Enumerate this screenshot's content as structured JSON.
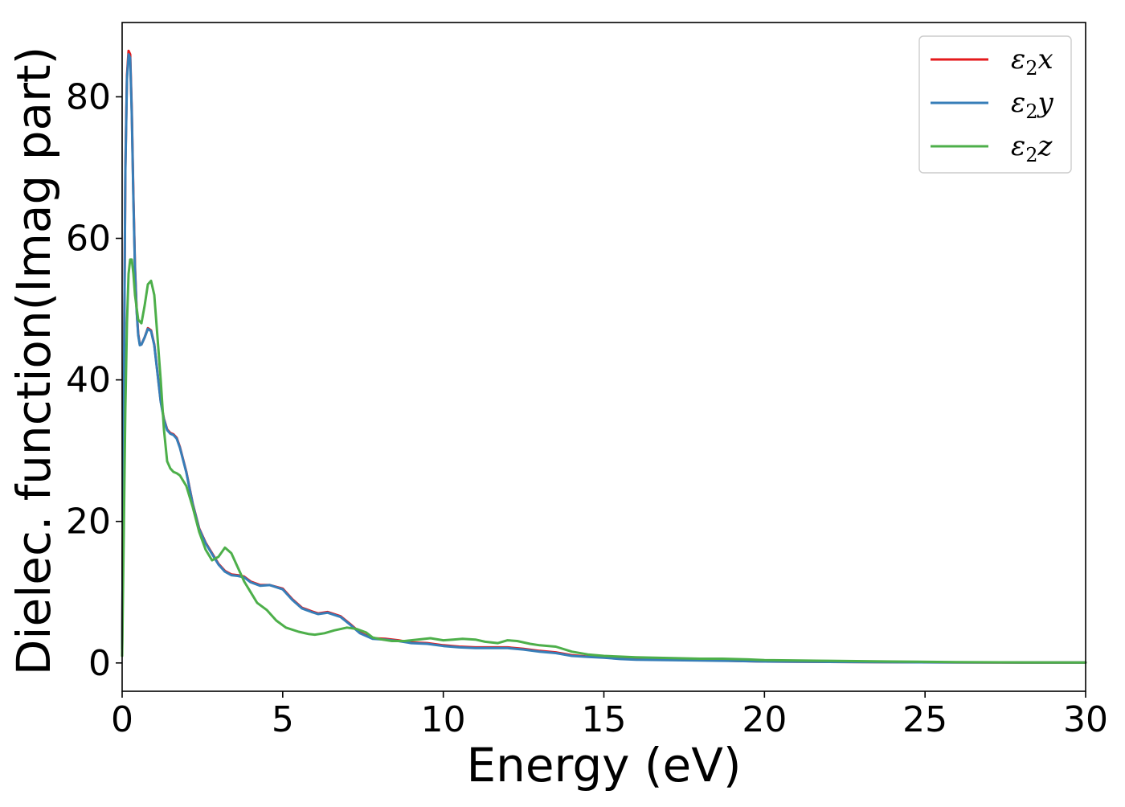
{
  "chart_data": {
    "type": "line",
    "title": "",
    "xlabel": "Energy (eV)",
    "ylabel": "Dielec. function(Imag part)",
    "xlim": [
      0,
      30
    ],
    "ylim": [
      -4,
      90.5
    ],
    "xticks": [
      0,
      5,
      10,
      15,
      20,
      25,
      30
    ],
    "yticks": [
      0,
      20,
      40,
      60,
      80
    ],
    "grid": false,
    "legend_position": "top-right",
    "series": [
      {
        "name": "ε2x",
        "legend_base": "ε",
        "legend_sub": "2",
        "legend_tail": "x",
        "color": "#e41a1c",
        "x": [
          0,
          0.05,
          0.1,
          0.15,
          0.2,
          0.25,
          0.3,
          0.35,
          0.4,
          0.45,
          0.5,
          0.55,
          0.6,
          0.7,
          0.8,
          0.9,
          1.0,
          1.1,
          1.2,
          1.3,
          1.4,
          1.5,
          1.6,
          1.7,
          1.8,
          2.0,
          2.2,
          2.4,
          2.6,
          2.8,
          3.0,
          3.2,
          3.4,
          3.6,
          3.8,
          4.0,
          4.3,
          4.6,
          5.0,
          5.3,
          5.6,
          5.9,
          6.1,
          6.4,
          6.8,
          7.1,
          7.4,
          7.8,
          8.2,
          8.6,
          9.0,
          9.5,
          10.0,
          10.5,
          11.0,
          11.5,
          12.0,
          12.5,
          13.0,
          13.5,
          14.0,
          14.5,
          15.0,
          15.5,
          16.0,
          17.0,
          18.0,
          19.0,
          20.0,
          22.0,
          24.0,
          26.0,
          28.0,
          30.0
        ],
        "y": [
          2,
          36,
          70,
          83,
          86.5,
          86,
          78,
          66,
          56,
          50,
          46.5,
          45,
          45,
          46,
          47.3,
          47,
          45,
          41,
          37,
          34.5,
          33,
          32.5,
          32.3,
          31.8,
          30.5,
          27,
          22.5,
          19,
          17,
          15.5,
          14,
          13,
          12.5,
          12.4,
          12.2,
          11.5,
          11,
          11,
          10.5,
          9,
          7.8,
          7.3,
          7,
          7.2,
          6.6,
          5.5,
          4.3,
          3.5,
          3.4,
          3.2,
          2.9,
          2.8,
          2.5,
          2.3,
          2.2,
          2.2,
          2.2,
          2.0,
          1.7,
          1.5,
          1.1,
          0.9,
          0.8,
          0.6,
          0.5,
          0.45,
          0.4,
          0.3,
          0.2,
          0.15,
          0.1,
          0.08,
          0.06,
          0.05
        ]
      },
      {
        "name": "ε2y",
        "legend_base": "ε",
        "legend_sub": "2",
        "legend_tail": "y",
        "color": "#377eb8",
        "x": [
          0,
          0.05,
          0.1,
          0.15,
          0.2,
          0.25,
          0.3,
          0.35,
          0.4,
          0.45,
          0.5,
          0.55,
          0.6,
          0.7,
          0.8,
          0.9,
          1.0,
          1.1,
          1.2,
          1.3,
          1.4,
          1.5,
          1.6,
          1.7,
          1.8,
          2.0,
          2.2,
          2.4,
          2.6,
          2.8,
          3.0,
          3.2,
          3.4,
          3.6,
          3.8,
          4.0,
          4.3,
          4.6,
          5.0,
          5.3,
          5.6,
          5.9,
          6.1,
          6.4,
          6.8,
          7.1,
          7.4,
          7.8,
          8.2,
          8.6,
          9.0,
          9.5,
          10.0,
          10.5,
          11.0,
          11.5,
          12.0,
          12.5,
          13.0,
          13.5,
          14.0,
          14.5,
          15.0,
          15.5,
          16.0,
          17.0,
          18.0,
          19.0,
          20.0,
          22.0,
          24.0,
          26.0,
          28.0,
          30.0
        ],
        "y": [
          2,
          35.5,
          69.5,
          82.5,
          86,
          85.5,
          77.5,
          65.5,
          55.5,
          49.8,
          46.3,
          44.9,
          45,
          46,
          47.2,
          46.9,
          44.9,
          40.9,
          36.9,
          34.4,
          32.9,
          32.4,
          32.2,
          31.7,
          30.4,
          26.9,
          22.4,
          18.9,
          16.9,
          15.4,
          13.9,
          12.9,
          12.4,
          12.3,
          12.1,
          11.4,
          10.9,
          11,
          10.4,
          8.9,
          7.7,
          7.2,
          6.9,
          7.1,
          6.5,
          5.4,
          4.2,
          3.4,
          3.3,
          3.1,
          2.8,
          2.7,
          2.4,
          2.2,
          2.1,
          2.1,
          2.1,
          1.9,
          1.6,
          1.4,
          1.0,
          0.85,
          0.75,
          0.55,
          0.45,
          0.4,
          0.35,
          0.28,
          0.2,
          0.15,
          0.1,
          0.08,
          0.06,
          0.05
        ]
      },
      {
        "name": "ε2z",
        "legend_base": "ε",
        "legend_sub": "2",
        "legend_tail": "z",
        "color": "#4daf4a",
        "x": [
          0,
          0.05,
          0.1,
          0.15,
          0.2,
          0.25,
          0.3,
          0.35,
          0.4,
          0.5,
          0.6,
          0.7,
          0.8,
          0.9,
          1.0,
          1.1,
          1.2,
          1.3,
          1.4,
          1.5,
          1.6,
          1.7,
          1.8,
          2.0,
          2.2,
          2.4,
          2.6,
          2.8,
          3.0,
          3.2,
          3.4,
          3.6,
          3.8,
          4.0,
          4.2,
          4.5,
          4.8,
          5.1,
          5.5,
          5.8,
          6.0,
          6.3,
          6.6,
          7.0,
          7.3,
          7.6,
          7.8,
          8.1,
          8.4,
          8.8,
          9.2,
          9.6,
          10.0,
          10.3,
          10.6,
          11.0,
          11.3,
          11.7,
          12.0,
          12.3,
          12.7,
          13.0,
          13.5,
          14.0,
          14.5,
          15.0,
          15.5,
          16.0,
          17.0,
          18.0,
          18.7,
          19.5,
          20.0,
          22.0,
          24.0,
          26.0,
          28.0,
          30.0
        ],
        "y": [
          1,
          18,
          36,
          48,
          55,
          57,
          57,
          55,
          52,
          48.5,
          48,
          50.5,
          53.5,
          54,
          52,
          46,
          40,
          33,
          28.5,
          27.5,
          27,
          26.8,
          26.5,
          25,
          22,
          18.5,
          16,
          14.5,
          15,
          16.3,
          15.5,
          13.5,
          11.5,
          10,
          8.5,
          7.5,
          6,
          5,
          4.4,
          4.1,
          4,
          4.2,
          4.6,
          5,
          4.8,
          4.3,
          3.6,
          3.3,
          3.1,
          3.1,
          3.3,
          3.5,
          3.2,
          3.3,
          3.4,
          3.3,
          3.0,
          2.8,
          3.2,
          3.1,
          2.7,
          2.5,
          2.3,
          1.6,
          1.2,
          1.0,
          0.9,
          0.8,
          0.7,
          0.6,
          0.6,
          0.5,
          0.4,
          0.3,
          0.2,
          0.12,
          0.08,
          0.05
        ]
      }
    ]
  }
}
